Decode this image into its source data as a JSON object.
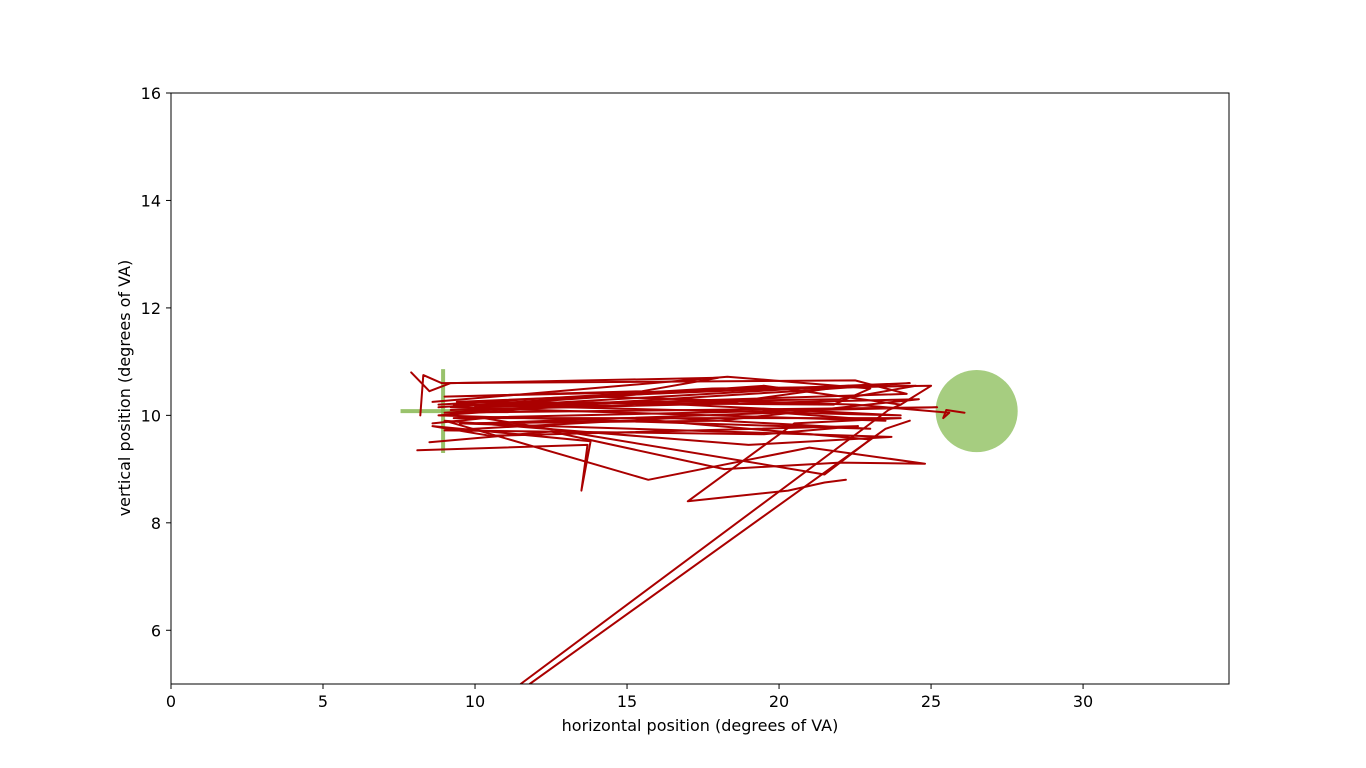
{
  "chart_data": {
    "type": "line",
    "title": "",
    "xlabel": "horizontal position (degrees of VA)",
    "ylabel": "vertical position (degrees of VA)",
    "xlim": [
      0,
      34.8
    ],
    "ylim": [
      5,
      16
    ],
    "x_ticks": [
      0,
      5,
      10,
      15,
      20,
      25,
      30
    ],
    "y_ticks": [
      6,
      8,
      10,
      12,
      14,
      16
    ],
    "x_tick_labels": [
      "0",
      "5",
      "10",
      "15",
      "20",
      "25",
      "30"
    ],
    "y_tick_labels": [
      "6",
      "8",
      "10",
      "12",
      "14",
      "16"
    ],
    "grid": false,
    "colors": {
      "trace": "#aa0000",
      "marker": "#7fb347",
      "target": "#a6cd80"
    },
    "fixation_cross": {
      "x": 8.95,
      "y": 10.08,
      "half_width": 1.4,
      "half_height": 0.78
    },
    "target": {
      "x": 26.5,
      "y": 10.08,
      "radius": 1.35
    },
    "series": [
      {
        "values": [
          [
            7.9,
            10.8
          ],
          [
            8.5,
            10.45
          ],
          [
            9.2,
            10.6
          ],
          [
            18.0,
            10.7
          ],
          [
            15.5,
            10.45
          ],
          [
            9.0,
            10.35
          ],
          [
            24.5,
            10.55
          ],
          [
            22.0,
            10.3
          ],
          [
            9.3,
            10.2
          ],
          [
            24.0,
            10.0
          ],
          [
            15.0,
            10.25
          ],
          [
            8.8,
            10.0
          ],
          [
            23.0,
            9.75
          ],
          [
            16.5,
            9.95
          ],
          [
            9.0,
            9.72
          ],
          [
            19.5,
            9.65
          ],
          [
            22.6,
            9.8
          ],
          [
            10.5,
            9.62
          ],
          [
            8.6,
            9.8
          ],
          [
            13.8,
            9.52
          ],
          [
            13.5,
            8.6
          ],
          [
            13.7,
            9.45
          ],
          [
            8.1,
            9.35
          ]
        ]
      },
      {
        "values": [
          [
            8.2,
            10.0
          ],
          [
            8.3,
            10.75
          ],
          [
            8.9,
            10.6
          ],
          [
            22.5,
            10.65
          ],
          [
            24.2,
            10.4
          ],
          [
            10.0,
            10.15
          ],
          [
            22.3,
            10.55
          ],
          [
            18.5,
            10.25
          ],
          [
            9.2,
            10.1
          ],
          [
            24.6,
            10.3
          ],
          [
            18.0,
            9.9
          ],
          [
            9.5,
            9.85
          ],
          [
            23.7,
            9.6
          ],
          [
            19.0,
            9.45
          ],
          [
            9.0,
            9.9
          ],
          [
            15.7,
            8.8
          ],
          [
            21.0,
            9.4
          ],
          [
            24.8,
            9.1
          ],
          [
            22.0,
            9.12
          ],
          [
            18.2,
            9.0
          ],
          [
            12.5,
            9.7
          ],
          [
            8.5,
            9.5
          ]
        ]
      },
      {
        "values": [
          [
            8.6,
            10.25
          ],
          [
            18.3,
            10.72
          ],
          [
            23.0,
            10.5
          ],
          [
            21.8,
            10.2
          ],
          [
            9.4,
            10.25
          ],
          [
            24.3,
            10.6
          ],
          [
            20.5,
            10.45
          ],
          [
            9.0,
            10.05
          ],
          [
            25.2,
            10.15
          ],
          [
            17.2,
            10.05
          ],
          [
            9.3,
            9.95
          ],
          [
            24.0,
            9.95
          ],
          [
            20.5,
            9.85
          ],
          [
            17.0,
            8.4
          ],
          [
            20.3,
            8.6
          ],
          [
            21.5,
            8.75
          ],
          [
            22.2,
            8.8
          ]
        ]
      },
      {
        "values": [
          [
            8.8,
            10.2
          ],
          [
            17.8,
            10.5
          ],
          [
            25.0,
            10.55
          ],
          [
            24.0,
            10.2
          ],
          [
            19.5,
            10.55
          ],
          [
            9.2,
            10.15
          ],
          [
            23.5,
            9.9
          ],
          [
            20.0,
            10.05
          ],
          [
            10.0,
            9.85
          ],
          [
            16.0,
            9.9
          ],
          [
            23.0,
            9.55
          ],
          [
            21.5,
            8.9
          ],
          [
            10.3,
            9.95
          ],
          [
            8.6,
            9.85
          ]
        ]
      },
      {
        "values": [
          [
            8.8,
            10.15
          ],
          [
            14.0,
            10.35
          ],
          [
            22.5,
            10.2
          ],
          [
            25.6,
            10.05
          ],
          [
            25.4,
            9.95
          ],
          [
            25.5,
            10.1
          ],
          [
            26.1,
            10.05
          ]
        ]
      },
      {
        "values": [
          [
            11.5,
            5.0
          ],
          [
            23.6,
            10.1
          ],
          [
            24.0,
            10.2
          ]
        ]
      },
      {
        "values": [
          [
            11.8,
            5.0
          ],
          [
            23.5,
            9.75
          ],
          [
            24.3,
            9.9
          ]
        ]
      }
    ]
  }
}
